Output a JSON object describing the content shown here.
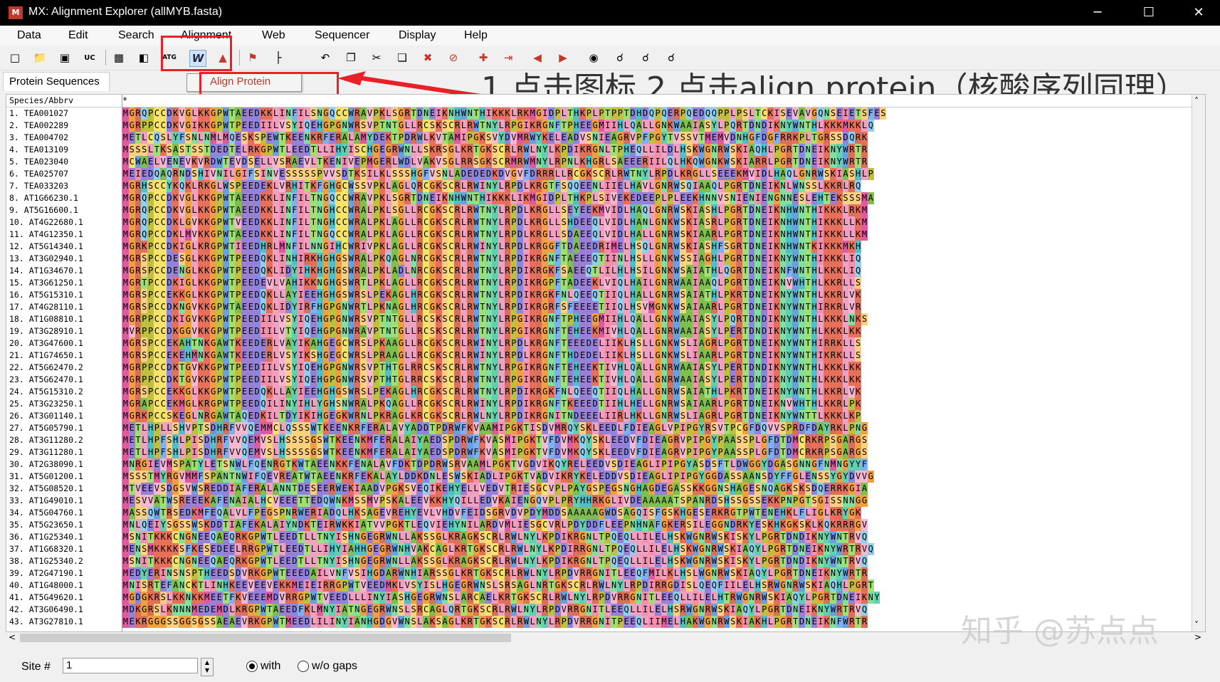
{
  "window": {
    "title": "MX: Alignment Explorer (allMYB.fasta)",
    "icon_text": "M",
    "minimize": "─",
    "maximize": "☐",
    "close": "✕"
  },
  "menu": [
    "Data",
    "Edit",
    "Search",
    "Alignment",
    "Web",
    "Sequencer",
    "Display",
    "Help"
  ],
  "toolbar_icons": [
    "new-file-icon",
    "open-folder-icon",
    "save-icon",
    "uc-icon",
    "table-icon",
    "columns-icon",
    "align-dna-icon",
    "align-protein-w-icon",
    "muscle-icon",
    "flag-icon",
    "tree-icon",
    "undo-icon",
    "copy-icon",
    "cut-icon",
    "paste-icon",
    "delete-icon",
    "clear-icon",
    "add-icon",
    "import-icon",
    "prev-icon",
    "next-icon",
    "zoom-icon",
    "search-prev-icon",
    "search-next-icon",
    "search-icon"
  ],
  "panel_tab": "Protein Sequences",
  "popup": "Align Protein",
  "annotation": "1.点击图标  2.点击align protein（核酸序列同理）",
  "watermark": "知乎 @苏点点",
  "grid": {
    "name_header": "Species/Abbrv",
    "seq_header": "*",
    "rows": [
      {
        "name": "1.  TEA001027",
        "seq": "MGRQPCCDKVGLKKGPWTAEEDKKLINFILSNGQCCWRAVPKLSGRTDNEIKNHWNTHIKKKLRKMGIDPLTHKPLPTPPTDHDQPQERPQEDQQPPLPSLTCKISEVAVGQNSEIETSFES"
      },
      {
        "name": "2.  TEA002289",
        "seq": "MGRPPCCDKVGIKKGPWTPEEDIILVSYIQEHGPGNWRSVPTNTGLLRCSKSCRLRWTNYLRPGIKRGNFTPHEEGMIIHLQALLGNKWAAIASYLPQRTDNDIKNYWNTHLKKKMKKLQ"
      },
      {
        "name": "3.  TEA004702",
        "seq": "METLCQSLYFSNLNMLMQESKSPEWTKEENKRFERALAMYDEKTPDRWLKVTAMIPGKSVYDVMRWYKELEADVSNIEAGRVPFPGYTVSSVTMEMVDNHGFDGFRRKPLTGRSSDQRK"
      },
      {
        "name": "4.  TEA013109",
        "seq": "MSSSLTKSASTSSTDEDTELRKGPWTLEEDTLLIHYISCHGEGRWNLLSKRSGLKRTGKSCRLRWLNYLKPDIKRGNLTPHEQLLILDLHSKWGNRWSKIAQHLPGRTDNEIKNYWRTR"
      },
      {
        "name": "5.  TEA023040",
        "seq": "MCWAELVENEVKVRDWTEVDSELLVSRAEVLTKENIVEPMGERLWDLVAKVSGLRRSGKSCRMRWMNYLRPNLKHGRLSAEEERIILQLHKQWGNKWSKIARRLPGRTDNEIKNYWRTR"
      },
      {
        "name": "6.  TEA025707",
        "seq": "MEIEDQAQRNDSHIVNILGIFSINVESSSSSPVVSDTKSILKLSSSHGFVSNLADEDEDKDVGVFDRRRLLRCGKSCRLRWTNYLRPDLKRGLLSEEEKMVIDLHAQLGNRWSKIASHLP"
      },
      {
        "name": "7.  TEA033203",
        "seq": "MGRHSCCYKQKLRKGLWSPEEDEKLVRHITKFGHGCWSSVPKLAGLQRCGKSCRLRWINYLRPDLKRGTFSQQEENLIIELHAVLGNRWSQIAAQLPGRTDNEIKNLWNSSLKKRLRQ"
      },
      {
        "name": "8.  AT1G66230.1",
        "seq": "MGRQPCCDKVGLKKGPWTAEEDKKLINFILTNGQCCWRAVPKLSGRTDNEIKNHWNTHIKKKLIKMGIDPLTHKPLSIVEKEDEEPLPLEEKHNNVSNIENIENGNNESLEHTEKSSSMA"
      },
      {
        "name": "9.  AT5G16600.1",
        "seq": "MGRQPCCDKVGLKKGPWTAEEDKKLINFILTNGHCCWRALPKLSGLLRCGKSCRLRWTNYLRPDLKRGLLSEYEEKMVIDLHAQLGNRWSKIASHLPGRTDNEIKNHWNTHIKKKLRKM"
      },
      {
        "name": "10.  AT4G22680.1",
        "seq": "MGRQPCCDKLGVKKGPWTVEEDKKLINFILTNGHCCWRALPKLAGLLRCGKSCRLRWTNYLRPDLKRGLLSHDEEQLVIDLHANLGNKWSKIASRLPGRTDNEIKNHWNTHIKKKLLKM"
      },
      {
        "name": "11.  AT4G12350.1",
        "seq": "MGRQPCCDKLMVKKGPWTAEEDKKLINFILTNGQCCWRALPKLAGLLRCGKSCRLRWTNYLRPDLKRGLLSDAEEQLVIDLHALLGNRWSKIAARLPGRTDNEIKNHWNTHIKKKLLKM"
      },
      {
        "name": "12.  AT5G14340.1",
        "seq": "MGRKPCCDKIGLKRGPWTIEEDHRLMNFILNNGIHCWRIVPKLAGLLRCGKSCRLRWINYLRPDLKRGGFTDAEEDRIMELHSQLGNRWSKIASHFSGRTDNEIKNHWNTKIKKKMKH"
      },
      {
        "name": "13.  AT3G02940.1",
        "seq": "MGRSPCCDESGLKKGPWTPEEDQKLINHIRKHGHGSWRALPKQAGLNRCGKSCRLRWTNYLRPDIKRGNFTAEEEQTIINLHSLLGNKWSSIAGHLPGRTDNEIKNYWNTHIKKKLIQ"
      },
      {
        "name": "14.  AT1G34670.1",
        "seq": "MGRSPCCDENGLKKGPWTPEEDQKLIDYIHKHGHGSWRALPKLADLNRCGKSCRLRWTNYLRPDIKRGKFSAEEQTLILHLHSILGNKWSAIATHLQGRTDNEIKNFWNTHLKKKLIQ"
      },
      {
        "name": "15.  AT3G61250.1",
        "seq": "MGRTPCCDKIGLKKGPWTPEEDEVLVAHIKKNGHGSWRTLPKLAGLLRCGKSCRLRWTNYLRPDIKRGPFTADEEKLVIQLHAILGNRWAAIAAQLPGRTDNEIKNVWHTHLKKRLLS"
      },
      {
        "name": "16.  AT5G15310.1",
        "seq": "MGRSPCCEKKGLKKGPWTPEEDQKLLAYIEEHGHGSWRSLPEKAGLHRCGKSCRLRWTNYLRPDIKRGKFNLQEEQTIIQLHALLGNRWSAIATHLPKRTDNEIKNYWNTHLKKRLVK"
      },
      {
        "name": "17.  AT4G28110.1",
        "seq": "MGRSPCCDKNGVKKGPWTAEEDQKLIDYIRFHGPGNWRTLPKNAGLHRCGKSCRLRWTNYLRPDIKRGRFSFEEEETIIQLHSVMGNKWSAIAARLPGRTDNEIKNYWNTHIRKRLVR"
      },
      {
        "name": "18.  AT1G08810.1",
        "seq": "MGRPPCCDKIGVKKGPWTPEEDIILVSYIQEHGPGNWRSVPTNTGLLRCSKSCRLRWTNYLRPGIKRGNFTPHEEGMIIHLQALLGNKWAAIASYLPQRTDNDIKNYWNTHLKKKLNKS"
      },
      {
        "name": "19.  AT3G28910.1",
        "seq": "MVRPPCCDKGGVKKGPWTPEEDIILVTYIQEHGPGNWRAVPTNTGLLRCSKSCRLRWTNYLRPGIKRGNFTEHEEKMIVHLQALLGNRWAAIASYLPERTDNDIKNYWNTHLKKKLKK"
      },
      {
        "name": "20.  AT3G47600.1",
        "seq": "MGRSPCCEKAHTNKGAWTKEEDERLVAYIKAHGEGCWRSLPKAAGLLRCGKSCRLRWINYLRPDLKRGNFTEEEDELIIKLHSLLGNKWSLIAGRLPGRTDNEIKNYWNTHIRRKLLS"
      },
      {
        "name": "21.  AT1G74650.1",
        "seq": "MGRSPCCEKEHMNKGAWTKEEDERLVSYIKSHGEGCWRSLPRAAGLLRCGKSCRLRWINYLRPDLKRGNFTHDEDELIIKLHSLLGNKWSLIAARLPGRTDNEIKNYWNTHIKRKLLS"
      },
      {
        "name": "22.  AT5G62470.2",
        "seq": "MGRPPCCDKTGVKKGPWTPEEDIILVSYIQEHGPGNWRSVPTHTGLRRCSKSCRLRWTNYLRPGIKRGNFTEHEEKTIVHLQALLGNRWAAIASYLPERTDNDIKNYWNTHLKKKLKK"
      },
      {
        "name": "23.  AT5G62470.1",
        "seq": "MGRPPCCDKTGVKKGPWTPEEDIILVSYIQEHGPGNWRSVPTHTGLRRCSKSCRLRWTNYLRPGIKRGNFTEHEEKTIVHLQALLGNRWAAIASYLPERTDNDIKNYWNTHLKKKLKK"
      },
      {
        "name": "24.  AT5G15310.2",
        "seq": "MGRSPCCEKKGLKKGPWTPEEDQKLLAYIEEHGHGSWRSLPEKAGLHRCGKSCRLRWTNYLRPDIKRGKFNLQEEQTIIQLHALLGNRWSAIATHLPKRTDNEIKNYWNTHLKKRLVK"
      },
      {
        "name": "25.  AT3G23250.1",
        "seq": "MGRAPCCEKMGLKRGPWTPEEDQILINYIHLYGHSNWRALPKQAGLLRCGKSCRLRWINYLRPDIKRGNFTKEEEDTIIHLHELLGNRWSAIAARLPGRTDNEIKNVWHTHLKKRLPK"
      },
      {
        "name": "26.  AT3G01140.1",
        "seq": "MGRKPCCSKEGLNRGAWTAQEDKILTDYIKIHGEGKWRNLPKRAGLKRCGKSCRLRWLNYLRPDIKRGNITNDEEELIIRLHKLLGNRWSLIAGRLPGRTDNEIKNYWNTTLKKKLKP"
      },
      {
        "name": "27.  AT5G05790.1",
        "seq": "METLHPLLSHVPTSDHRFVVQEMMCLQSSSWTKEENKRFERALAVYADDTPDRWFKVAAMIPGKTISDVMRQYSKLEEDLFDIEAGLVPIPGYRSVTPCGFDQVVSPRDFDAYRKLPNG"
      },
      {
        "name": "28.  AT3G11280.2",
        "seq": "METLHPFSHLPISDHRFVVQEMVSLHSSSSGSWTKEENKMFERALAIYAEDSPDRWFKVASMIPGKTVFDVMKQYSKLEEDVFDIEAGRVPIPGYPAASSPLGFDTDMCRKRPSGARGS"
      },
      {
        "name": "29.  AT3G11280.1",
        "seq": "METLHPFSHLPISDHRFVVQEMVSLHSSSSGSWTKEENKMFERALAIYAEDSPDRWFKVASMIPGKTVFDVMKQYSKLEEDVFDIEAGRVPIPGYPAASSPLGFDTDMCRKRPSGARGS"
      },
      {
        "name": "30.  AT2G38090.1",
        "seq": "MNRGIEVMSPATYLETSNWLFQENRGTKWTAEENKKFENALAVFDKTDPDRWSRVAAMLPGKTVGDVIKQYRELEEDVSDIEAGLIPIPGYASDSFTLDWGGYDGASGNNGFNMNGYYF"
      },
      {
        "name": "31.  AT5G01200.1",
        "seq": "MSSSTMYRGVMMFSPANTNWIFQEVREATWTAEENKRFEKALAYLDDKDNLESWSKIADLIPGKTVADVIKRYKELEDDVSDIEAGLIPIPGYGGDASSAANSDYFFGLENSSYGYDVVG"
      },
      {
        "name": "32.  AT5G08520.1",
        "seq": "MTVEEVSDGSVWSREDDIAFERALANNTDESEERWEKIAADVPGKSVEQIKEHYELLVEDVTRIESGCVPLPAYGSPEGSNGHAGDEGASSKKGGNSHAGESNQAGKSKSDQERRKGIA"
      },
      {
        "name": "33.  AT1G49010.1",
        "seq": "MESVVATWSREEEKAFENAIALHCVEEETTEDQWNKMSSMVPSKALEEVKKHYQILLEDVKAIENGQVPLPRYHHRKGLIVDEAAAAATSPANRDSHSSGSSEKKPNPGTSGISSNNGG"
      },
      {
        "name": "34.  AT5G04760.1",
        "seq": "MASSQWTRSEDKMFEQALVLFPEGSPNRWERIADQLHKSAGEVREHYEVLVHDVFEIDSGRVDVPDYMDDSAAAAAGWDSAGQISFGSKHGESERKRGTPWTENEHKLFLIGLKRYGK"
      },
      {
        "name": "35.  AT5G23650.1",
        "seq": "MNLQEIYSGSSWSKDDTIAFEKALAIYNDKTEIRWKKIATVVPGKTLEQVIEHYNILARDVMLIESGCVRLPDYDDFLEEPNHNAFGKERSILEGGNDRKYESKHKGKSKLKQKRRRGV"
      },
      {
        "name": "36.  AT1G25340.1",
        "seq": "MSNITKKKCNGNEEQAEQRKGPWTLEEDTLLTNYISHNGEGRWNLLAKSSGLKRAGKSCRLRWLNYLKPDIKRGNLTPQEQLLILELHSKWGNRWSKISKYLPGRTDNDIKNYWNTRVQ"
      },
      {
        "name": "37.  AT1G68320.1",
        "seq": "MENSMKKKKSFKESEDEELRRGPWTLEEDTLLIHYIAHHGEGRWNHVAKCAGLKRTGKSCRLRWLNYLKPDIRRGNLTPQEQLLILELHSKWGNRWSKIAQYLPGRTDNEIKNYWRTRVQ"
      },
      {
        "name": "38.  AT1G25340.2",
        "seq": "MSNITKKKCNGNEEQAEQRKGPWTLEEDTLLTNYISHNGEGRWNLLAKSSGLKRAGKSCRLRWLNYLKPDIKRGNLTPQEQLLILELHSKWGNRWSKISKYLPGRTDNDIKNYWNTRVQ"
      },
      {
        "name": "39.  AT2G47190.1",
        "seq": "MEDYERINSNSPTHEEDSDVRKGPWTEEEDAILVNFVSIHGDARWNHIARSSGLKRTGKSCRLRWLNYLRPDVRRGNITLEEQFMILKLHSLWGNRWSKIAQYLPGRTDNEIKNYWRTR"
      },
      {
        "name": "40.  AT1G48000.1",
        "seq": "MNISRTEFANCKTLINHKEEVEEVEKKMEIEIRRGPWTVEEDMKLVSYISLHGEGRWNSLSRSAGLNRTGKSCRLRWLNYLRPDIRRGDISLQEQFIILELHSRWGNRWSKIAQHLPGRT"
      },
      {
        "name": "41.  AT5G49620.1",
        "seq": "MGDGKRSLKKNKKMEETFKVEEEMDVRRGPWTVEEDLLLINYIASHGEGRWNSLARCAELKRTGKSCRLRWLNYLRPDVRRGNITLEEQLLILELHTRWGNRWSKIAQYLPGRTDNEIKNY"
      },
      {
        "name": "42.  AT3G06490.1",
        "seq": "MDKGRSLKNNNMEDEMDLKRGPWTAEEDFKLMNYIATNGEGRWNSLSRCAGLQRTGKSCRLRWLNYLRPDVRRGNITLEEQLLILELHSRWGNRWSKIAQYLPGRTDNEIKNYWRTRVQ"
      },
      {
        "name": "43.  AT3G27810.1",
        "seq": "MEKRGGGSSGGSGSSAEAEVRKGPWTMEEDLILINYIANHGDGVWNSLAKSAGLKRTGKSCRLRWLNYLRPDVRRGNITPEEQLIIMELHAKWGNRWSKIAKHLPGRTDNEIKNFWRTR"
      }
    ]
  },
  "status": {
    "site_label": "Site #",
    "site_value": "1",
    "radio_with": "with",
    "radio_without": "w/o gaps"
  }
}
